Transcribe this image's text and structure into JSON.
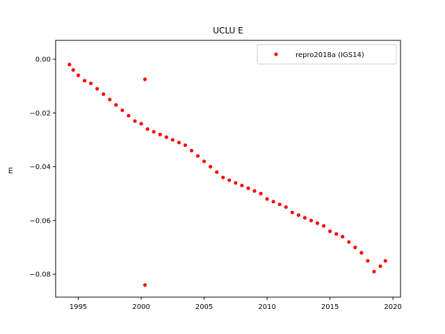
{
  "chart_data": {
    "type": "scatter",
    "title": "UCLU E",
    "xlabel": "",
    "ylabel": "m",
    "xlim": [
      1993.2,
      2020.6
    ],
    "ylim": [
      -0.0885,
      0.007
    ],
    "xticks": [
      1995,
      2000,
      2005,
      2010,
      2015,
      2020
    ],
    "xtick_labels": [
      "1995",
      "2000",
      "2005",
      "2010",
      "2015",
      "2020"
    ],
    "yticks": [
      0.0,
      -0.02,
      -0.04,
      -0.06,
      -0.08
    ],
    "ytick_labels": [
      "0.00",
      "−0.02",
      "−0.04",
      "−0.06",
      "−0.08"
    ],
    "grid": false,
    "legend_position": "top-right",
    "series": [
      {
        "name": "repro2018a (IGS14)",
        "color": "#ff0000",
        "marker": "circle",
        "x": [
          1994.3,
          1994.6,
          1995.0,
          1995.5,
          1996.0,
          1996.5,
          1997.0,
          1997.5,
          1998.0,
          1998.5,
          1999.0,
          1999.5,
          2000.0,
          2000.5,
          2001.0,
          2001.5,
          2002.0,
          2002.5,
          2003.0,
          2003.5,
          2004.0,
          2004.5,
          2005.0,
          2005.5,
          2006.0,
          2006.5,
          2007.0,
          2007.5,
          2008.0,
          2008.5,
          2009.0,
          2009.5,
          2010.0,
          2010.5,
          2011.0,
          2011.5,
          2012.0,
          2012.5,
          2013.0,
          2013.5,
          2014.0,
          2014.5,
          2015.0,
          2015.5,
          2016.0,
          2016.5,
          2017.0,
          2017.5,
          2018.0,
          2018.5,
          2019.0,
          2019.4,
          2000.3,
          2000.3
        ],
        "y": [
          -0.002,
          -0.004,
          -0.006,
          -0.008,
          -0.009,
          -0.011,
          -0.013,
          -0.015,
          -0.017,
          -0.019,
          -0.021,
          -0.023,
          -0.024,
          -0.026,
          -0.027,
          -0.028,
          -0.029,
          -0.03,
          -0.031,
          -0.032,
          -0.034,
          -0.036,
          -0.038,
          -0.04,
          -0.042,
          -0.044,
          -0.045,
          -0.046,
          -0.047,
          -0.048,
          -0.049,
          -0.05,
          -0.052,
          -0.053,
          -0.054,
          -0.055,
          -0.057,
          -0.058,
          -0.059,
          -0.06,
          -0.061,
          -0.062,
          -0.064,
          -0.065,
          -0.066,
          -0.068,
          -0.07,
          -0.072,
          -0.075,
          -0.079,
          -0.077,
          -0.075,
          -0.0075,
          -0.084
        ]
      }
    ]
  }
}
